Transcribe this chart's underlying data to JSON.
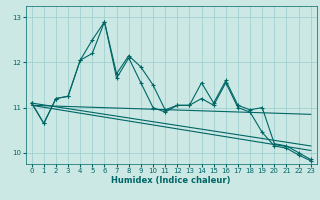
{
  "xlabel": "Humidex (Indice chaleur)",
  "bg_color": "#cce8e4",
  "grid_color": "#99cccc",
  "line_color": "#006666",
  "xlim": [
    -0.5,
    23.5
  ],
  "ylim": [
    9.75,
    13.25
  ],
  "yticks": [
    10,
    11,
    12,
    13
  ],
  "xticks": [
    0,
    1,
    2,
    3,
    4,
    5,
    6,
    7,
    8,
    9,
    10,
    11,
    12,
    13,
    14,
    15,
    16,
    17,
    18,
    19,
    20,
    21,
    22,
    23
  ],
  "series1_x": [
    0,
    1,
    2,
    3,
    4,
    5,
    6,
    7,
    8,
    9,
    10,
    11,
    12,
    13,
    14,
    15,
    16,
    17,
    18,
    19,
    20,
    21,
    22,
    23
  ],
  "series1_y": [
    11.1,
    10.65,
    11.2,
    11.25,
    12.05,
    12.5,
    12.9,
    11.75,
    12.15,
    11.9,
    11.5,
    10.95,
    11.05,
    11.05,
    11.55,
    11.1,
    11.6,
    11.05,
    10.95,
    11.0,
    10.2,
    10.15,
    10.0,
    9.85
  ],
  "series2_x": [
    0,
    1,
    2,
    3,
    4,
    5,
    6,
    7,
    8,
    9,
    10,
    11,
    12,
    13,
    14,
    15,
    16,
    17,
    18,
    19,
    20,
    21,
    22,
    23
  ],
  "series2_y": [
    11.1,
    10.65,
    11.2,
    11.25,
    12.05,
    12.2,
    12.9,
    11.65,
    12.1,
    11.55,
    11.0,
    10.9,
    11.05,
    11.05,
    11.2,
    11.05,
    11.55,
    11.0,
    10.9,
    10.45,
    10.15,
    10.1,
    9.95,
    9.82
  ],
  "trend1_x": [
    0,
    23
  ],
  "trend1_y": [
    11.05,
    10.85
  ],
  "trend2_x": [
    0,
    23
  ],
  "trend2_y": [
    11.1,
    10.15
  ],
  "trend3_x": [
    0,
    23
  ],
  "trend3_y": [
    11.05,
    10.05
  ]
}
